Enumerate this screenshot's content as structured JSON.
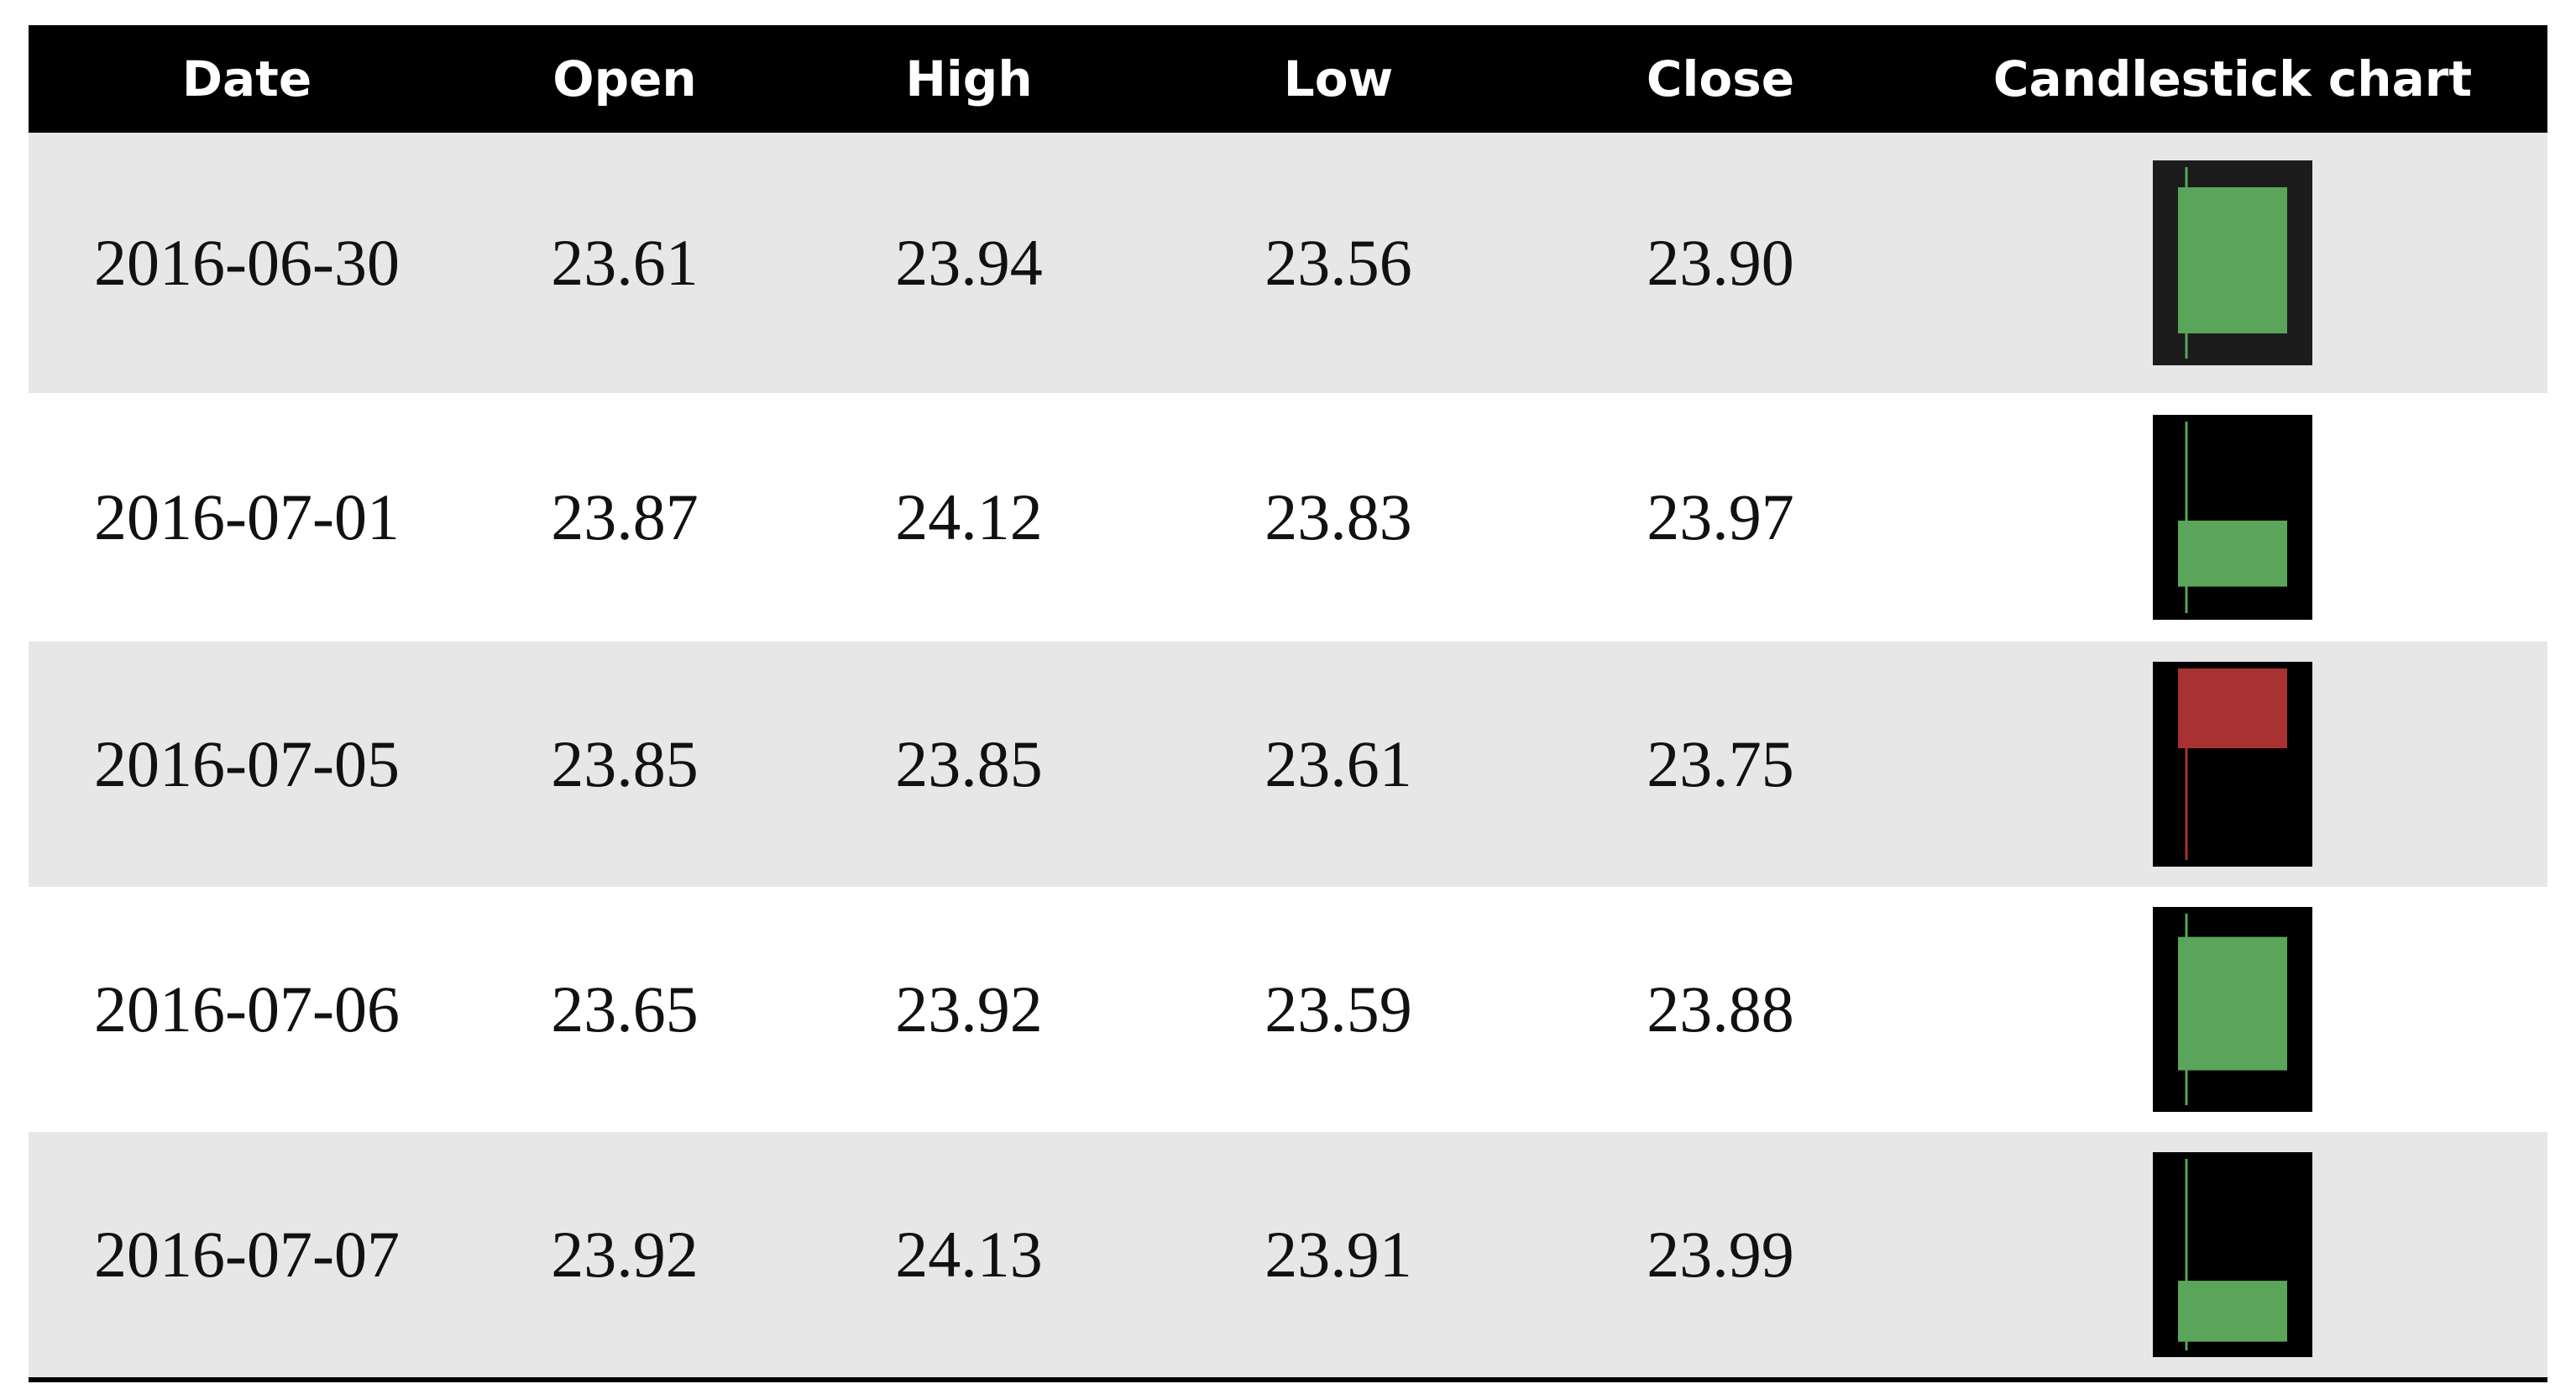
{
  "table": {
    "headers": [
      "Date",
      "Open",
      "High",
      "Low",
      "Close",
      "Candlestick chart"
    ],
    "colors": {
      "header_bg": "#000000",
      "header_text": "#ffffff",
      "row_shade": "#e7e7e7",
      "row_plain": "#ffffff",
      "bullish": "#5aa55a",
      "bearish": "#a83232"
    },
    "rows": [
      {
        "date": "2016-06-30",
        "open": "23.61",
        "high": "23.94",
        "low": "23.56",
        "close": "23.90"
      },
      {
        "date": "2016-07-01",
        "open": "23.87",
        "high": "24.12",
        "low": "23.83",
        "close": "23.97"
      },
      {
        "date": "2016-07-05",
        "open": "23.85",
        "high": "23.85",
        "low": "23.61",
        "close": "23.75"
      },
      {
        "date": "2016-07-06",
        "open": "23.65",
        "high": "23.92",
        "low": "23.59",
        "close": "23.88"
      },
      {
        "date": "2016-07-07",
        "open": "23.92",
        "high": "24.13",
        "low": "23.91",
        "close": "23.99"
      }
    ]
  },
  "chart_data": {
    "type": "table",
    "x": [
      "2016-06-30",
      "2016-07-01",
      "2016-07-05",
      "2016-07-06",
      "2016-07-07"
    ],
    "series": [
      {
        "name": "Open",
        "values": [
          23.61,
          23.87,
          23.85,
          23.65,
          23.92
        ]
      },
      {
        "name": "High",
        "values": [
          23.94,
          24.12,
          23.85,
          23.92,
          24.13
        ]
      },
      {
        "name": "Low",
        "values": [
          23.56,
          23.83,
          23.61,
          23.59,
          23.91
        ]
      },
      {
        "name": "Close",
        "values": [
          23.9,
          23.97,
          23.75,
          23.88,
          23.99
        ]
      }
    ]
  }
}
